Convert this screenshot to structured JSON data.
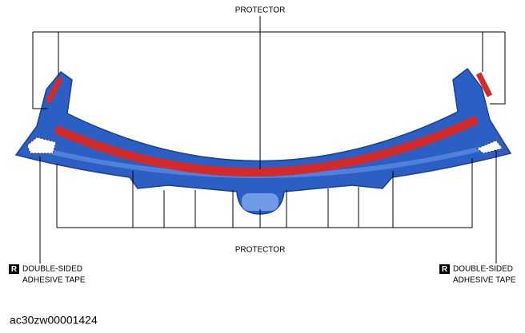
{
  "labels": {
    "top": "PROTECTOR",
    "bottom": "PROTECTOR",
    "left": {
      "badge": "R",
      "line1": "DOUBLE-SIDED",
      "line2": "ADHESIVE TAPE"
    },
    "right": {
      "badge": "R",
      "line1": "DOUBLE-SIDED",
      "line2": "ADHESIVE TAPE"
    }
  },
  "footer": {
    "code": "ac30zw00001424"
  }
}
